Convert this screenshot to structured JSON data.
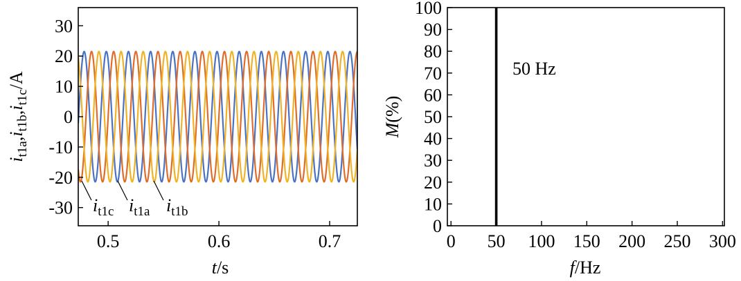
{
  "chart_data": [
    {
      "type": "line",
      "xlabel": "t/s",
      "ylabel": "i_t1a, i_t1b, i_t1c/A",
      "xlim": [
        0.473,
        0.725
      ],
      "ylim": [
        -36,
        36
      ],
      "xticks": [
        0.5,
        0.6,
        0.7
      ],
      "yticks": [
        -30,
        -20,
        -10,
        0,
        10,
        20,
        30
      ],
      "grid": false,
      "signal": {
        "amplitude_A": 21.5,
        "frequency_Hz": 50,
        "phase_offset_deg": 120
      },
      "series": [
        {
          "name": "i_t1a",
          "color": "#e06c2a",
          "phase_deg": 0
        },
        {
          "name": "i_t1b",
          "color": "#f0b323",
          "phase_deg": -120
        },
        {
          "name": "i_t1c",
          "color": "#4a72c4",
          "phase_deg": 120
        }
      ],
      "annotations": [
        {
          "base": "i",
          "sub": "t1c"
        },
        {
          "base": "i",
          "sub": "t1a"
        },
        {
          "base": "i",
          "sub": "t1b"
        }
      ]
    },
    {
      "type": "bar",
      "xlabel": "f/Hz",
      "ylabel": "M(%)",
      "xlim": [
        -4,
        302
      ],
      "ylim": [
        0,
        100
      ],
      "xticks": [
        0,
        50,
        100,
        150,
        200,
        250,
        300
      ],
      "yticks": [
        0,
        10,
        20,
        30,
        40,
        50,
        60,
        70,
        80,
        90,
        100
      ],
      "grid": false,
      "x": [
        50
      ],
      "values": [
        100
      ],
      "annotation": "50 Hz"
    }
  ]
}
